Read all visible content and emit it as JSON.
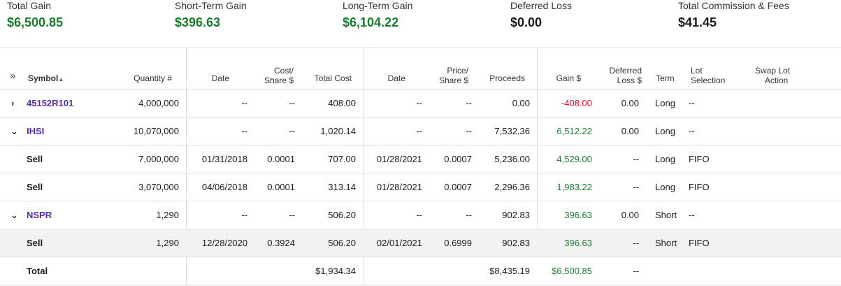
{
  "summary": [
    {
      "label": "Total Gain",
      "value": "$6,500.85",
      "color": "green"
    },
    {
      "label": "Short-Term Gain",
      "value": "$396.63",
      "color": "green"
    },
    {
      "label": "Long-Term Gain",
      "value": "$6,104.22",
      "color": "green"
    },
    {
      "label": "Deferred Loss",
      "value": "$0.00",
      "color": "black"
    },
    {
      "label": "Total Commission & Fees",
      "value": "$41.45",
      "color": "black"
    }
  ],
  "header": {
    "expand_icon": "double-chevron-right",
    "symbol": "Symbol",
    "sort_icon": "sort-ascending",
    "quantity": "Quantity #",
    "date_acq": "Date",
    "cost_share_1": "Cost/",
    "cost_share_2": "Share $",
    "total_cost": "Total Cost",
    "date_sold": "Date",
    "price_share_1": "Price/",
    "price_share_2": "Share $",
    "proceeds": "Proceeds",
    "gain": "Gain $",
    "deferred_1": "Deferred",
    "deferred_2": "Loss $",
    "term": "Term",
    "lot_1": "Lot",
    "lot_2": "Selection",
    "swap_1": "Swap Lot",
    "swap_2": "Action"
  },
  "rows": [
    {
      "chevron": "›",
      "symbol": "45152R101",
      "quantity": "4,000,000",
      "date_acq": "--",
      "cost_share": "--",
      "total_cost": "408.00",
      "date_sold": "--",
      "price_share": "--",
      "proceeds": "0.00",
      "gain": "-408.00",
      "gain_color": "red",
      "deferred": "0.00",
      "term": "Long",
      "lot": "--"
    },
    {
      "chevron": "⌄",
      "symbol": "IHSI",
      "quantity": "10,070,000",
      "date_acq": "--",
      "cost_share": "--",
      "total_cost": "1,020.14",
      "date_sold": "--",
      "price_share": "--",
      "proceeds": "7,532.36",
      "gain": "6,512.22",
      "gain_color": "green",
      "deferred": "0.00",
      "term": "Long",
      "lot": "--"
    },
    {
      "chevron": "",
      "symbol": "Sell",
      "quantity": "7,000,000",
      "date_acq": "01/31/2018",
      "cost_share": "0.0001",
      "total_cost": "707.00",
      "date_sold": "01/28/2021",
      "price_share": "0.0007",
      "proceeds": "5,236.00",
      "gain": "4,529.00",
      "gain_color": "green",
      "deferred": "--",
      "term": "Long",
      "lot": "FIFO"
    },
    {
      "chevron": "",
      "symbol": "Sell",
      "quantity": "3,070,000",
      "date_acq": "04/06/2018",
      "cost_share": "0.0001",
      "total_cost": "313.14",
      "date_sold": "01/28/2021",
      "price_share": "0.0007",
      "proceeds": "2,296.36",
      "gain": "1,983.22",
      "gain_color": "green",
      "deferred": "--",
      "term": "Long",
      "lot": "FIFO"
    },
    {
      "chevron": "⌄",
      "symbol": "NSPR",
      "quantity": "1,290",
      "date_acq": "--",
      "cost_share": "--",
      "total_cost": "506.20",
      "date_sold": "--",
      "price_share": "--",
      "proceeds": "902.83",
      "gain": "396.63",
      "gain_color": "green",
      "deferred": "0.00",
      "term": "Short",
      "lot": "--"
    },
    {
      "chevron": "",
      "symbol": "Sell",
      "quantity": "1,290",
      "date_acq": "12/28/2020",
      "cost_share": "0.3924",
      "total_cost": "506.20",
      "date_sold": "02/01/2021",
      "price_share": "0.6999",
      "proceeds": "902.83",
      "gain": "396.63",
      "gain_color": "green",
      "deferred": "--",
      "term": "Short",
      "lot": "FIFO"
    }
  ],
  "total": {
    "label": "Total",
    "total_cost": "$1,934.34",
    "proceeds": "$8,435.19",
    "gain": "$6,500.85",
    "deferred": "--"
  },
  "colors": {
    "green": "#1a7a2e",
    "red": "#c8102e",
    "purple": "#5a2ca0",
    "shade": "#f2f2f2"
  }
}
